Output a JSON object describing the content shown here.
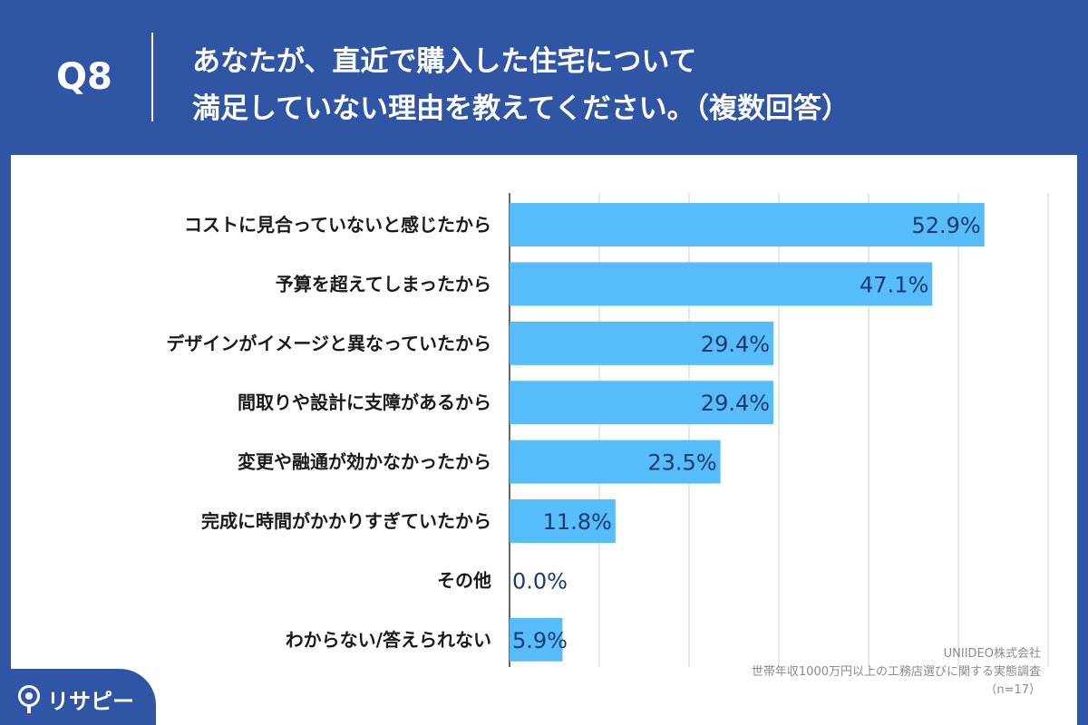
{
  "header": {
    "question_number": "Q8",
    "title_line1": "あなたが、直近で購入した住宅について",
    "title_line2": "満足していない理由を教えてください。（複数回答）"
  },
  "source": {
    "company": "UNIIDEO株式会社",
    "survey": "世帯年収1000万円以上の工務店選びに関する実態調査",
    "sample": "（n=17）"
  },
  "logo": {
    "text": "リサピー"
  },
  "colors": {
    "bar": "#57bdfa",
    "background": "#2f55a4",
    "value_text": "#1c3a6b"
  },
  "chart_data": {
    "type": "bar",
    "orientation": "horizontal",
    "categories": [
      "コストに見合っていないと感じたから",
      "予算を超えてしまったから",
      "デザインがイメージと異なっていたから",
      "間取りや設計に支障があるから",
      "変更や融通が効かなかったから",
      "完成に時間がかかりすぎていたから",
      "その他",
      "わからない/答えられない"
    ],
    "values": [
      52.9,
      47.1,
      29.4,
      29.4,
      23.5,
      11.8,
      0.0,
      5.9
    ],
    "value_labels": [
      "52.9%",
      "47.1%",
      "29.4%",
      "29.4%",
      "23.5%",
      "11.8%",
      "0.0%",
      "5.9%"
    ],
    "xlim": [
      0,
      60
    ],
    "grid": true,
    "legend": false
  }
}
